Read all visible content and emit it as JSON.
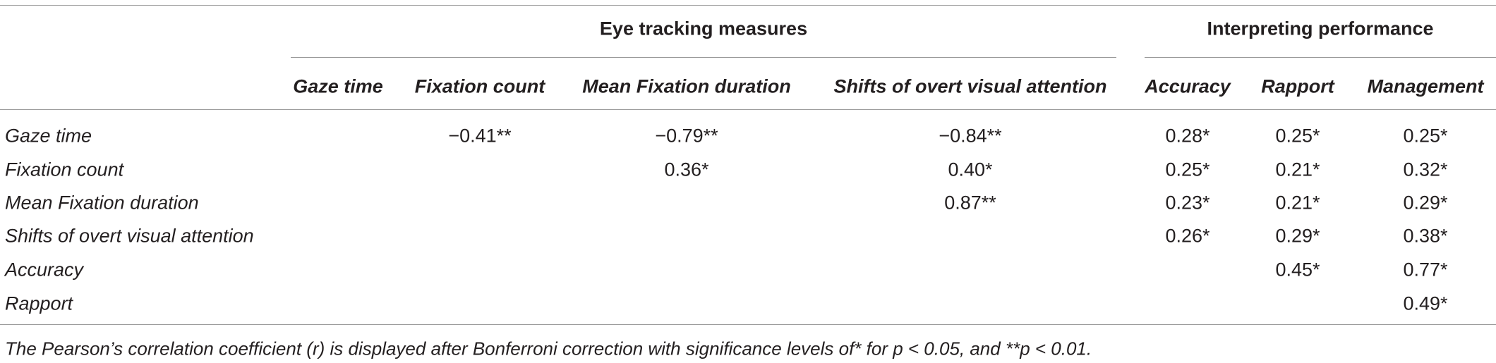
{
  "table": {
    "groups": [
      "Eye tracking measures",
      "Interpreting performance"
    ],
    "columns": [
      "Gaze time",
      "Fixation count",
      "Mean Fixation duration",
      "Shifts of overt visual attention",
      "Accuracy",
      "Rapport",
      "Management"
    ],
    "rows": [
      {
        "label": "Gaze time",
        "cells": [
          null,
          "−0.41**",
          "−0.79**",
          "−0.84**",
          "0.28*",
          "0.25*",
          "0.25*"
        ]
      },
      {
        "label": "Fixation count",
        "cells": [
          null,
          null,
          "0.36*",
          "0.40*",
          "0.25*",
          "0.21*",
          "0.32*"
        ]
      },
      {
        "label": "Mean Fixation duration",
        "cells": [
          null,
          null,
          null,
          "0.87**",
          "0.23*",
          "0.21*",
          "0.29*"
        ]
      },
      {
        "label": "Shifts of overt visual attention",
        "cells": [
          null,
          null,
          null,
          null,
          "0.26*",
          "0.29*",
          "0.38*"
        ]
      },
      {
        "label": "Accuracy",
        "cells": [
          null,
          null,
          null,
          null,
          null,
          "0.45*",
          "0.77*"
        ]
      },
      {
        "label": "Rapport",
        "cells": [
          null,
          null,
          null,
          null,
          null,
          null,
          "0.49*"
        ]
      }
    ],
    "footnote": "The Pearson’s correlation coefficient (r) is displayed after Bonferroni correction with significance levels of* for p < 0.05, and **p < 0.01."
  }
}
